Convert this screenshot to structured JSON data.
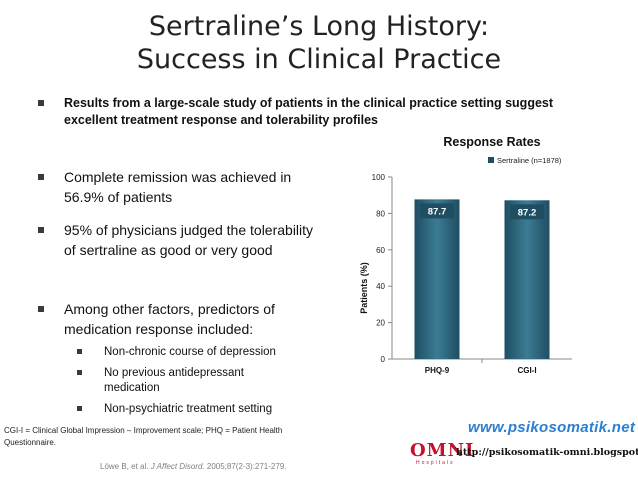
{
  "slide": {
    "title_line1": "Sertraline’s Long History:",
    "title_line2": "Success in Clinical Practice",
    "intro": "Results from a large-scale study of patients in the clinical practice setting suggest excellent treatment response and tolerability profiles",
    "bullets": [
      "Complete remission was achieved in 56.9% of patients",
      "95% of physicians judged the tolerability of sertraline as good or very good",
      "Among other factors, predictors of medication response included:"
    ],
    "sub_bullets": [
      "Non-chronic course of depression",
      "No previous antidepressant medication",
      "Non-psychiatric treatment setting"
    ],
    "footnote": "CGI-I = Clinical Global Impression – Improvement scale; PHQ = Patient Health Questionnaire.",
    "citation_pre": "Löwe B, et al. ",
    "citation_journal": "J Affect Disord.",
    "citation_post": " 2005;87(2-3):271-279.",
    "watermark_url": "www.psikosomatik.net",
    "brand": "OMNI",
    "brand_sub": "Hospitals",
    "blog_url": "http://psikosomatik-omni.blogspot.co.id"
  },
  "colors": {
    "bar": "#1f4e63",
    "bar_light": "#3b7c93",
    "label_bg": "#1f4e63"
  },
  "chart_data": {
    "type": "bar",
    "title": "Response Rates",
    "categories": [
      "PHQ-9",
      "CGI-I"
    ],
    "series": [
      {
        "name": "Sertraline (n=1878)",
        "values": [
          87.7,
          87.2
        ]
      }
    ],
    "data_labels": [
      "87.7",
      "87.2"
    ],
    "xlabel": "",
    "ylabel": "Patients (%)",
    "ylim": [
      0,
      100
    ],
    "yticks": [
      0,
      20,
      40,
      60,
      80,
      100
    ],
    "legend": "top-right",
    "grid": false
  }
}
